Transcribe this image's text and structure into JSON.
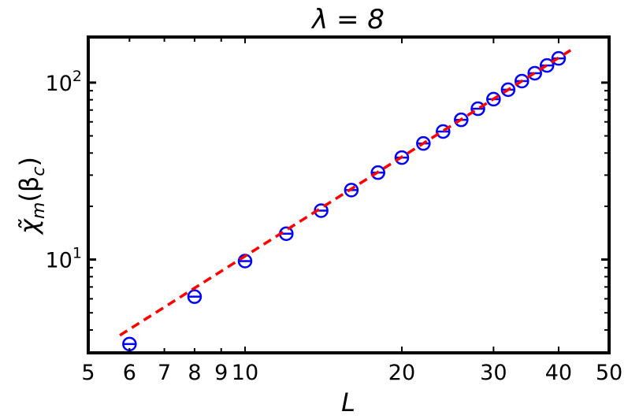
{
  "chart_data": {
    "type": "scatter",
    "title": "λ = 8",
    "xlabel": "L",
    "ylabel_base": "χ̃",
    "ylabel_sub": "m",
    "ylabel_arg": "(β",
    "ylabel_argsub": "c",
    "ylabel_close": ")",
    "xscale": "log",
    "yscale": "log",
    "xlim": [
      5,
      50
    ],
    "ylim": [
      2.97,
      181
    ],
    "xticks": [
      5,
      6,
      7,
      8,
      9,
      10,
      20,
      30,
      40,
      50
    ],
    "xtick_labels": [
      "5",
      "6",
      "7",
      "8",
      "9",
      "10",
      "20",
      "30",
      "40",
      "50"
    ],
    "yticks": [
      10,
      100
    ],
    "ytick_labels": [
      {
        "base": "10",
        "exp": "1"
      },
      {
        "base": "10",
        "exp": "2"
      }
    ],
    "grid": false,
    "series": [
      {
        "kind": "points",
        "marker": "open-circle",
        "color": "#0000ff",
        "x": [
          6,
          8,
          10,
          12,
          14,
          16,
          18,
          20,
          22,
          24,
          26,
          28,
          30,
          32,
          34,
          36,
          38,
          40
        ],
        "y": [
          3.33,
          6.17,
          9.8,
          14.0,
          18.9,
          24.7,
          31.0,
          37.7,
          45.3,
          52.9,
          61.6,
          71.2,
          80.6,
          91.2,
          102,
          113,
          125,
          137
        ]
      },
      {
        "kind": "fit",
        "style": "dashed",
        "color": "#ff0000",
        "x": [
          5.75,
          42.4
        ],
        "y": [
          3.73,
          154
        ]
      }
    ]
  }
}
